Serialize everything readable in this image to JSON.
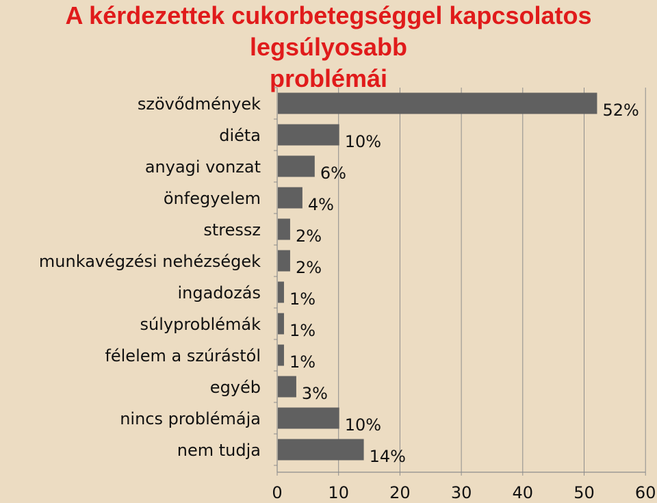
{
  "title_line1": "A kérdezettek cukorbetegséggel kapcsolatos legsúlyosabb",
  "title_line2": "problémái",
  "chart_data": {
    "type": "bar",
    "orientation": "horizontal",
    "categories": [
      "szövődmények",
      "diéta",
      "anyagi vonzat",
      "önfegyelem",
      "stressz",
      "munkavégzési nehézségek",
      "ingadozás",
      "súlyproblémák",
      "félelem a szúrástól",
      "egyéb",
      "nincs problémája",
      "nem tudja"
    ],
    "values": [
      52,
      10,
      6,
      4,
      2,
      2,
      1,
      1,
      1,
      3,
      10,
      14
    ],
    "value_labels": [
      "52%",
      "10%",
      "6%",
      "4%",
      "2%",
      "2%",
      "1%",
      "1%",
      "1%",
      "3%",
      "10%",
      "14%"
    ],
    "xlim": [
      0,
      60
    ],
    "xticks": [
      "0",
      "10",
      "20",
      "30",
      "40",
      "50",
      "60"
    ],
    "grid": true,
    "bar_color": "#606060",
    "title_color": "#e01b1b",
    "background_color": "#ecdcc2"
  }
}
